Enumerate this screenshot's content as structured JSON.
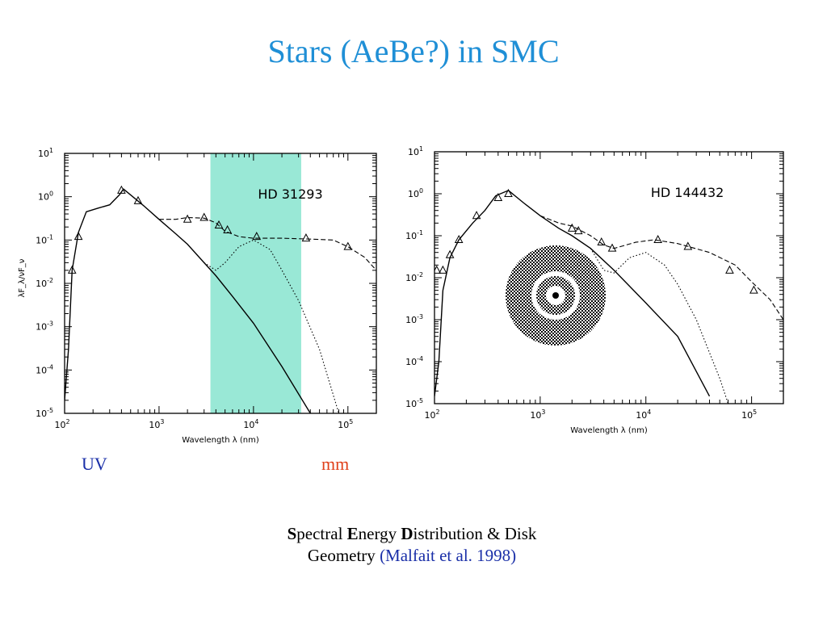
{
  "slide": {
    "title": "Stars (AeBe?) in SMC",
    "uv_label": "UV",
    "mm_label": "mm",
    "caption": {
      "s_initial": "S",
      "s_rest": "pectral ",
      "e_initial": "E",
      "e_rest": "nergy ",
      "d_initial": "D",
      "d_rest": "istribution & Disk",
      "line2": "Geometry ",
      "citation": "(Malfait et al. 1998)"
    }
  },
  "colors": {
    "title": "#1f8fd6",
    "uv": "#1a2fa8",
    "mm": "#e0401a",
    "band": "#99e8d6"
  },
  "chart_data": [
    {
      "type": "line",
      "title": "HD 31293",
      "xlabel": "Wavelength  λ  (nm)",
      "ylabel": "λF_λ/νF_ν",
      "xscale": "log",
      "yscale": "log",
      "xlim": [
        100,
        200000
      ],
      "ylim": [
        1e-05,
        10
      ],
      "x_ticks": [
        "10^2",
        "10^3",
        "10^4",
        "10^5"
      ],
      "y_ticks": [
        "10^1",
        "10^0",
        "10^-1",
        "10^-2",
        "10^-3",
        "10^-4",
        "10^-5"
      ],
      "highlight_band": {
        "x_from": 3500,
        "x_to": 32000
      },
      "series": [
        {
          "style": "solid",
          "points": [
            [
              100,
              2e-05
            ],
            [
              110,
              0.0003
            ],
            [
              120,
              0.02
            ],
            [
              140,
              0.15
            ],
            [
              170,
              0.45
            ],
            [
              230,
              0.55
            ],
            [
              300,
              0.65
            ],
            [
              380,
              1.1
            ],
            [
              420,
              1.5
            ],
            [
              500,
              1.1
            ],
            [
              700,
              0.6
            ],
            [
              1000,
              0.3
            ],
            [
              1500,
              0.14
            ],
            [
              2000,
              0.08
            ],
            [
              3000,
              0.03
            ],
            [
              4000,
              0.015
            ],
            [
              6000,
              0.005
            ],
            [
              10000,
              0.0012
            ],
            [
              20000,
              0.00012
            ],
            [
              40000,
              1e-05
            ]
          ]
        },
        {
          "style": "dashed",
          "points": [
            [
              1000,
              0.3
            ],
            [
              1500,
              0.3
            ],
            [
              2000,
              0.33
            ],
            [
              3000,
              0.32
            ],
            [
              4000,
              0.25
            ],
            [
              5000,
              0.16
            ],
            [
              7000,
              0.12
            ],
            [
              10000,
              0.11
            ],
            [
              20000,
              0.11
            ],
            [
              40000,
              0.105
            ],
            [
              70000,
              0.1
            ],
            [
              100000,
              0.07
            ],
            [
              150000,
              0.04
            ],
            [
              200000,
              0.02
            ]
          ]
        },
        {
          "style": "dotted",
          "points": [
            [
              3000,
              0.03
            ],
            [
              4000,
              0.02
            ],
            [
              5000,
              0.03
            ],
            [
              7000,
              0.07
            ],
            [
              10000,
              0.1
            ],
            [
              15000,
              0.06
            ],
            [
              20000,
              0.02
            ],
            [
              30000,
              0.004
            ],
            [
              50000,
              0.0003
            ],
            [
              80000,
              1e-05
            ]
          ]
        }
      ],
      "markers": [
        [
          120,
          0.02
        ],
        [
          140,
          0.12
        ],
        [
          400,
          1.4
        ],
        [
          600,
          0.8
        ],
        [
          2000,
          0.3
        ],
        [
          3000,
          0.33
        ],
        [
          4300,
          0.22
        ],
        [
          5300,
          0.17
        ],
        [
          10800,
          0.12
        ],
        [
          36000,
          0.11
        ],
        [
          100000,
          0.07
        ]
      ]
    },
    {
      "type": "line",
      "title": "HD 144432",
      "xlabel": "Wavelength  λ  (nm)",
      "xscale": "log",
      "yscale": "log",
      "xlim": [
        100,
        200000
      ],
      "ylim": [
        1e-05,
        10
      ],
      "x_ticks": [
        "10^2",
        "10^3",
        "10^4",
        "10^5"
      ],
      "y_ticks": [
        "10^1",
        "10^0",
        "10^-1",
        "10^-2",
        "10^-3",
        "10^-4",
        "10^-5"
      ],
      "series": [
        {
          "style": "solid",
          "points": [
            [
              100,
              1.5e-05
            ],
            [
              110,
              0.0001
            ],
            [
              120,
              0.005
            ],
            [
              140,
              0.03
            ],
            [
              170,
              0.08
            ],
            [
              230,
              0.2
            ],
            [
              300,
              0.4
            ],
            [
              380,
              0.9
            ],
            [
              500,
              1.2
            ],
            [
              700,
              0.6
            ],
            [
              1000,
              0.3
            ],
            [
              1500,
              0.15
            ],
            [
              2000,
              0.1
            ],
            [
              3000,
              0.05
            ],
            [
              5000,
              0.015
            ],
            [
              10000,
              0.0025
            ],
            [
              20000,
              0.0004
            ],
            [
              40000,
              1.5e-05
            ]
          ]
        },
        {
          "style": "dashed",
          "points": [
            [
              1000,
              0.3
            ],
            [
              1500,
              0.2
            ],
            [
              2000,
              0.17
            ],
            [
              3000,
              0.1
            ],
            [
              4000,
              0.06
            ],
            [
              5000,
              0.05
            ],
            [
              8000,
              0.07
            ],
            [
              12000,
              0.08
            ],
            [
              20000,
              0.065
            ],
            [
              40000,
              0.04
            ],
            [
              70000,
              0.02
            ],
            [
              100000,
              0.008
            ],
            [
              150000,
              0.003
            ],
            [
              200000,
              0.001
            ]
          ]
        },
        {
          "style": "dotted",
          "points": [
            [
              3000,
              0.05
            ],
            [
              4000,
              0.015
            ],
            [
              5000,
              0.013
            ],
            [
              7000,
              0.03
            ],
            [
              10000,
              0.04
            ],
            [
              15000,
              0.02
            ],
            [
              20000,
              0.007
            ],
            [
              30000,
              0.001
            ],
            [
              50000,
              4e-05
            ],
            [
              60000,
              1e-05
            ]
          ]
        }
      ],
      "markers": [
        [
          105,
          0.015
        ],
        [
          120,
          0.015
        ],
        [
          140,
          0.035
        ],
        [
          170,
          0.08
        ],
        [
          250,
          0.3
        ],
        [
          400,
          0.8
        ],
        [
          500,
          1.0
        ],
        [
          2000,
          0.15
        ],
        [
          2300,
          0.13
        ],
        [
          3800,
          0.07
        ],
        [
          4800,
          0.05
        ],
        [
          13000,
          0.08
        ],
        [
          25000,
          0.055
        ],
        [
          62000,
          0.015
        ],
        [
          105000,
          0.005
        ]
      ],
      "inset": "disk-geometry"
    }
  ]
}
